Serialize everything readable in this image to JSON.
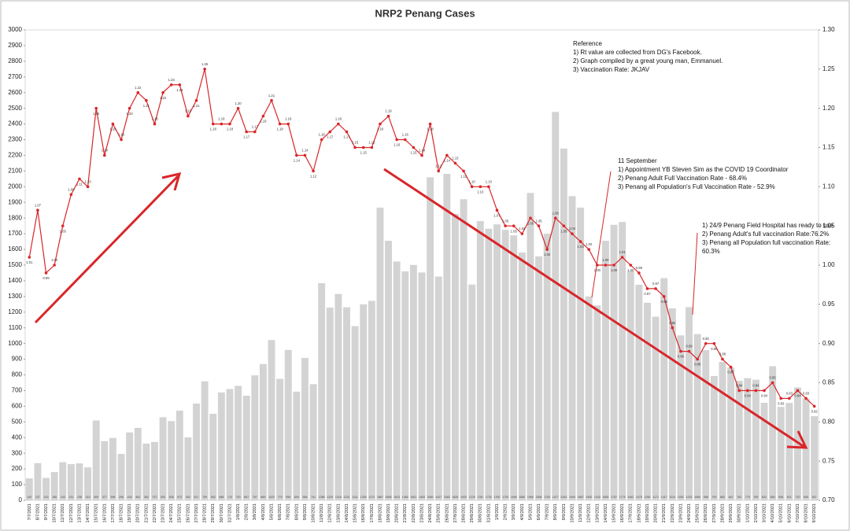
{
  "chart_data": {
    "type": "combo",
    "title": "NRP2 Penang Cases",
    "categories": [
      "7/7/2021",
      "8/7/2021",
      "9/7/2021",
      "10/7/2021",
      "11/7/2021",
      "12/7/2021",
      "13/7/2021",
      "14/7/2021",
      "15/7/2021",
      "16/7/2021",
      "17/7/2021",
      "18/7/2021",
      "19/7/2021",
      "20/7/2021",
      "21/7/2021",
      "22/7/2021",
      "23/7/2021",
      "24/7/2021",
      "25/7/2021",
      "26/7/2021",
      "27/7/2021",
      "28/7/2021",
      "29/7/2021",
      "30/7/2021",
      "31/7/2021",
      "1/8/2021",
      "2/8/2021",
      "3/8/2021",
      "4/8/2021",
      "5/8/2021",
      "6/8/2021",
      "7/8/2021",
      "8/8/2021",
      "9/8/2021",
      "10/8/2021",
      "11/8/2021",
      "12/8/2021",
      "13/8/2021",
      "14/8/2021",
      "15/8/2021",
      "16/8/2021",
      "17/8/2021",
      "18/8/2021",
      "19/8/2021",
      "20/8/2021",
      "21/8/2021",
      "22/8/2021",
      "23/8/2021",
      "24/8/2021",
      "25/8/2021",
      "26/8/2021",
      "27/8/2021",
      "28/8/2021",
      "29/8/2021",
      "30/8/2021",
      "31/8/2021",
      "1/9/2021",
      "2/9/2021",
      "3/9/2021",
      "4/9/2021",
      "5/9/2021",
      "6/9/2021",
      "7/9/2021",
      "8/9/2021",
      "9/9/2021",
      "10/9/2021",
      "11/9/2021",
      "12/9/2021",
      "13/9/2021",
      "14/9/2021",
      "15/9/2021",
      "16/9/2021",
      "17/9/2021",
      "18/9/2021",
      "19/9/2021",
      "20/9/2021",
      "21/9/2021",
      "22/9/2021",
      "23/9/2021",
      "24/9/2021",
      "25/9/2021",
      "26/9/2021",
      "27/9/2021",
      "28/9/2021",
      "29/9/2021",
      "30/9/2021",
      "1/10/2021",
      "2/10/2021",
      "3/10/2021",
      "4/10/2021",
      "5/10/2021",
      "6/10/2021",
      "7/10/2021",
      "8/10/2021",
      "9/10/2021"
    ],
    "series": [
      {
        "type": "bar",
        "color": "#d3d3d3",
        "values": [
          140,
          237,
          143,
          180,
          243,
          231,
          236,
          210,
          509,
          377,
          398,
          296,
          433,
          462,
          362,
          372,
          530,
          505,
          572,
          402,
          617,
          759,
          552,
          688,
          710,
          730,
          667,
          797,
          869,
          1022,
          775,
          959,
          693,
          908,
          741,
          1385,
          1229,
          1316,
          1231,
          1111,
          1250,
          1272,
          1867,
          1655,
          1523,
          1460,
          1501,
          1453,
          2060,
          1427,
          2082,
          1826,
          1920,
          1376,
          1781,
          1732,
          1760,
          1725,
          1690,
          1580,
          1960,
          1556,
          1700,
          2477,
          2243,
          1940,
          1867,
          1300,
          1243,
          1655,
          1757,
          1775,
          1462,
          1375,
          1260,
          1171,
          1417,
          1224,
          1052,
          1232,
          1060,
          958,
          793,
          883,
          847,
          762,
          779,
          769,
          622,
          855,
          596,
          621,
          720,
          650,
          537
        ]
      },
      {
        "type": "line",
        "axis": "y2",
        "color": "#d9262a",
        "values": [
          1.01,
          1.07,
          0.99,
          1.0,
          1.05,
          1.09,
          1.11,
          1.1,
          1.2,
          1.14,
          1.18,
          1.16,
          1.2,
          1.22,
          1.21,
          1.18,
          1.22,
          1.23,
          1.23,
          1.19,
          1.21,
          1.25,
          1.18,
          1.18,
          1.18,
          1.2,
          1.17,
          1.17,
          1.19,
          1.21,
          1.18,
          1.18,
          1.14,
          1.14,
          1.12,
          1.16,
          1.17,
          1.18,
          1.17,
          1.15,
          1.15,
          1.15,
          1.18,
          1.19,
          1.16,
          1.16,
          1.15,
          1.14,
          1.18,
          1.12,
          1.14,
          1.13,
          1.12,
          1.1,
          1.1,
          1.1,
          1.07,
          1.05,
          1.05,
          1.04,
          1.06,
          1.05,
          1.02,
          1.06,
          1.05,
          1.04,
          1.03,
          1.02,
          1.0,
          1.0,
          1.0,
          1.01,
          1.0,
          0.99,
          0.97,
          0.97,
          0.96,
          0.92,
          0.89,
          0.89,
          0.88,
          0.9,
          0.9,
          0.88,
          0.87,
          0.84,
          0.84,
          0.84,
          0.84,
          0.85,
          0.83,
          0.83,
          0.84,
          0.83,
          0.82
        ],
        "value_labels": [
          "1.01",
          "1.07",
          "0.99",
          "1.00",
          "1.05",
          "1.09",
          "1.11",
          "1.10",
          "1.20",
          "1.14",
          "1.18",
          "1.16",
          "1.20",
          "1.22",
          "1.21",
          "1.18",
          "1.22",
          "1.23",
          "1.23",
          "1.19",
          "1.21",
          "1.25",
          "1.18",
          "1.18",
          "1.18",
          "1.20",
          "1.17",
          "1.17",
          "1.19",
          "1.21",
          "1.18",
          "1.18",
          "1.14",
          "1.14",
          "1.12",
          "1.16",
          "1.17",
          "1.18",
          "1.17",
          "1.15",
          "1.15",
          "1.15",
          "1.18",
          "1.19",
          "1.16",
          "1.16",
          "1.15",
          "1.14",
          "1.18",
          "1.12",
          "1.14",
          "1.13",
          "1.12",
          "1.10",
          "1.10",
          "1.10",
          "1.07",
          "1.05",
          "1.05",
          "1.04",
          "1.06",
          "1.05",
          "1.02",
          "1.06",
          "1.05",
          "1.04",
          "1.03",
          "1.02",
          "1.00",
          "1.00",
          "1.00",
          "1.01",
          "1.00",
          "0.99",
          "0.97",
          "0.97",
          "0.96",
          "0.92",
          "0.89",
          "0.89",
          "0.88",
          "0.90",
          "0.90",
          "0.88",
          "0.87",
          "0.84",
          "0.84",
          "0.84",
          "0.84",
          "0.85",
          "0.83",
          "0.83",
          "0.84",
          "0.83",
          "0.82"
        ]
      }
    ],
    "ylim": [
      0,
      3000
    ],
    "yticks": [
      0,
      100,
      200,
      300,
      400,
      500,
      600,
      700,
      800,
      900,
      1000,
      1100,
      1200,
      1300,
      1400,
      1500,
      1600,
      1700,
      1800,
      1900,
      2000,
      2100,
      2200,
      2300,
      2400,
      2500,
      2600,
      2700,
      2800,
      2900,
      3000
    ],
    "y2lim": [
      0.7,
      1.3
    ],
    "y2ticks": [
      {
        "value": 0.7,
        "label": "0.70"
      },
      0.75,
      {
        "value": 0.8,
        "label": "0.80"
      },
      0.85,
      {
        "value": 0.9,
        "label": "0.90"
      },
      0.95,
      {
        "value": 1.0,
        "label": "1.00"
      },
      1.05,
      {
        "value": 1.1,
        "label": "1.10"
      },
      1.15,
      {
        "value": 1.2,
        "label": "1.20"
      },
      1.25,
      {
        "value": 1.3,
        "label": "1.30"
      }
    ],
    "grid": false,
    "annotations": [
      {
        "lines": [
          "Reference",
          "1) Rt value are collected from DG's Facebook.",
          "2) Graph compiled by a great young man, Emmanuel.",
          "3) Vaccination Rate: JKJAV"
        ]
      },
      {
        "lines": [
          "11 September",
          "1) Appointment YB Steven Sim as the COVID 19 Coordinator",
          "2) Penang Adult Full Vaccination Rate - 68.4%",
          "3) Penang all Population's Full Vaccination Rate -  52.9%"
        ]
      },
      {
        "lines": [
          "1) 24/9 Penang Field Hospital has ready to use",
          "2) Penang Adult's full vaccination Rate:76.2%",
          "3) Penang all Population full vaccination Rate:",
          "60.3%"
        ]
      }
    ]
  }
}
